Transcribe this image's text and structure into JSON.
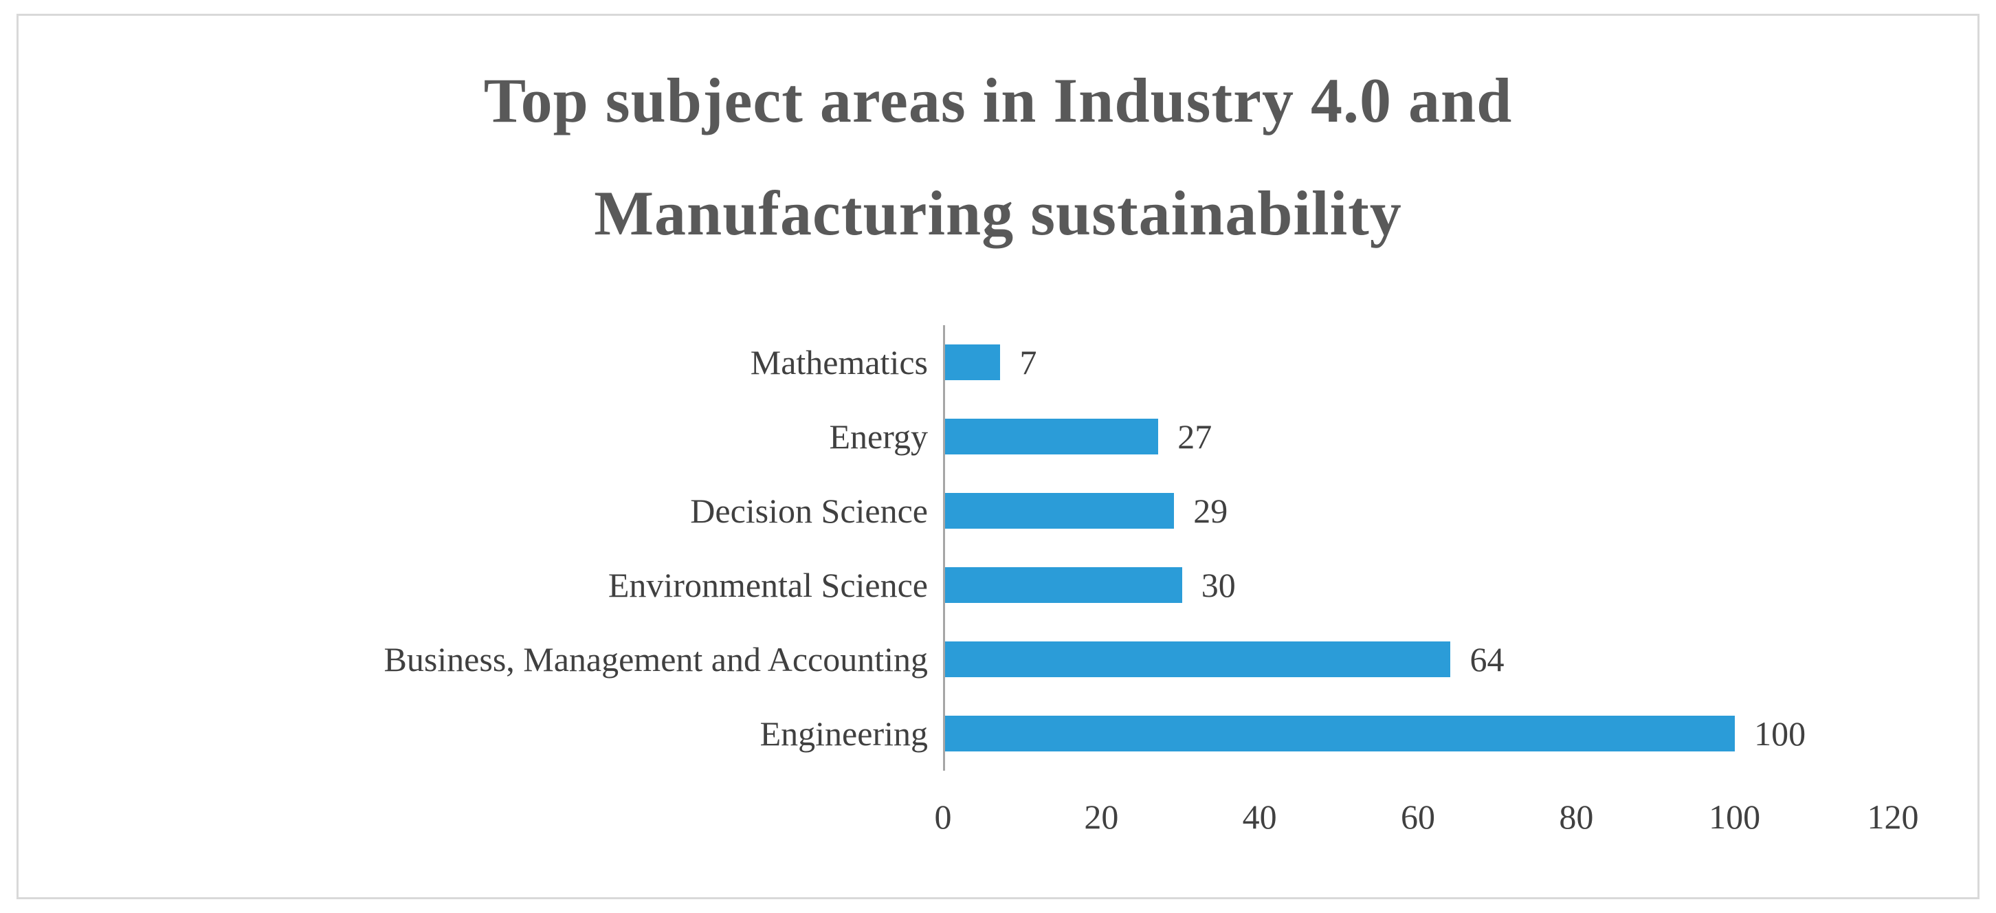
{
  "frame": {
    "background": "#ffffff",
    "border_color": "#d9d9d9"
  },
  "chart_data": {
    "type": "bar",
    "orientation": "horizontal",
    "title": "Top subject areas in Industry 4.0 and Manufacturing sustainability",
    "categories": [
      "Mathematics",
      "Energy",
      "Decision Science",
      "Environmental Science",
      "Business, Management and Accounting",
      "Engineering"
    ],
    "values": [
      7,
      27,
      29,
      30,
      64,
      100
    ],
    "xlabel": "",
    "ylabel": "",
    "xlim": [
      0,
      120
    ],
    "x_ticks": [
      0,
      20,
      40,
      60,
      80,
      100,
      120
    ],
    "value_labels_shown": true,
    "grid": "off",
    "legend": "none",
    "bar_color": "#2B9CD8",
    "title_color": "#595959",
    "label_color": "#404040",
    "axis_line_color": "#a6a6a6"
  }
}
